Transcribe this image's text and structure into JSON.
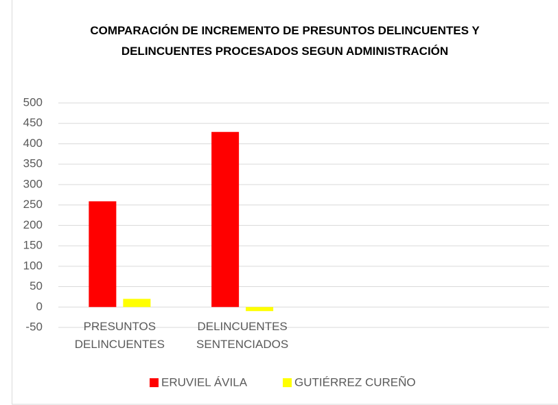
{
  "chart_data": {
    "type": "bar",
    "title": "COMPARACIÓN DE INCREMENTO DE PRESUNTOS DELINCUENTES Y DELINCUENTES PROCESADOS SEGUN ADMINISTRACIÓN",
    "categories": [
      "PRESUNTOS DELINCUENTES",
      "DELINCUENTES SENTENCIADOS",
      null,
      null
    ],
    "series": [
      {
        "name": "ERUVIEL ÁVILA",
        "color": "#ff0000",
        "values": [
          259,
          429,
          null,
          null
        ]
      },
      {
        "name": "GUTIÉRREZ CUREÑO",
        "color": "#ffff00",
        "values": [
          20,
          -10,
          null,
          null
        ]
      }
    ],
    "ylim": [
      -50,
      500
    ],
    "yticks": [
      -50,
      0,
      50,
      100,
      150,
      200,
      250,
      300,
      350,
      400,
      450,
      500
    ],
    "grid": true,
    "legend": "bottom"
  }
}
